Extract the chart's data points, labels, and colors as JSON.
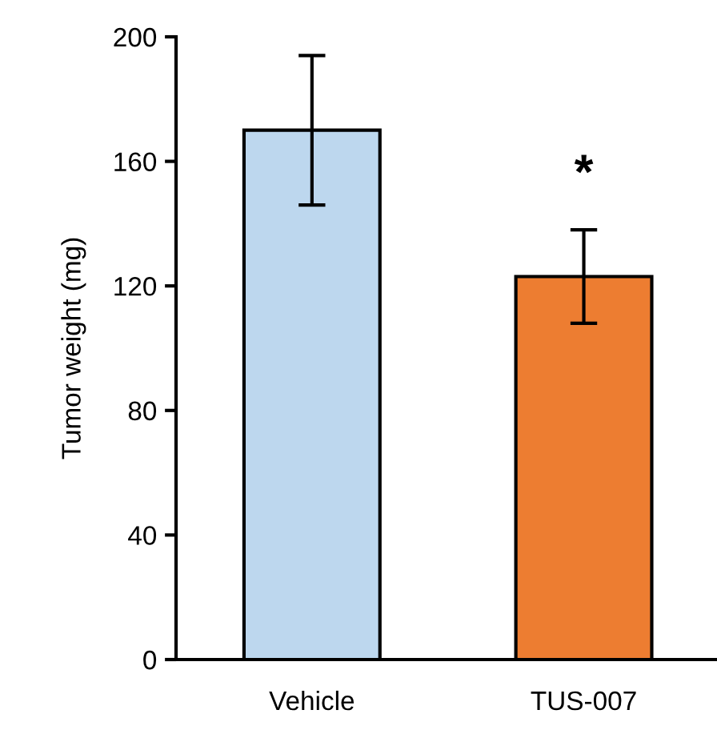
{
  "chart_data": {
    "type": "bar",
    "ylabel": "Tumor weight (mg)",
    "categories": [
      "Vehicle",
      "TUS-007"
    ],
    "values": [
      170,
      123
    ],
    "colors": [
      "#bdd7ee",
      "#ed7d31"
    ],
    "errors": [
      24,
      15
    ],
    "ylim": [
      0,
      200
    ],
    "yticks": [
      0,
      40,
      80,
      120,
      160,
      200
    ],
    "grid": false,
    "annotations": [
      "*"
    ]
  }
}
